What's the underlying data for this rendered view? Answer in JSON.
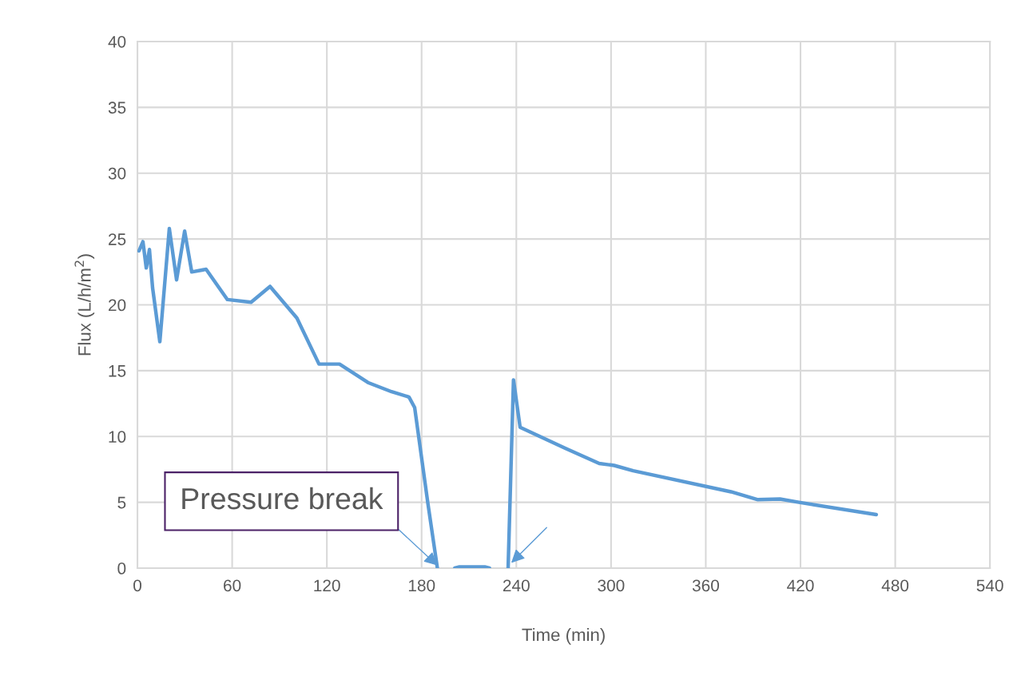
{
  "chart_data": {
    "type": "line",
    "xlabel": "Time (min)",
    "ylabel": "Flux (L/h/m$^{2}$)",
    "xlim": [
      0,
      540
    ],
    "xticks": [
      0,
      60,
      120,
      180,
      240,
      300,
      360,
      420,
      480,
      540
    ],
    "ylim": [
      0,
      40
    ],
    "yticks": [
      0,
      5,
      10,
      15,
      20,
      25,
      30,
      35,
      40
    ],
    "grid": true,
    "marker": "none",
    "line_style": "solid",
    "annotations": [
      {
        "text": "Pressure break",
        "x": 190,
        "y": 0
      }
    ],
    "series": [
      {
        "color": "#5b9bd5",
        "x": [
          1,
          3.5,
          5.6,
          7.6,
          9.6,
          14.2,
          20.2,
          24.8,
          29.9,
          34.4,
          43.5,
          57,
          72,
          84,
          101,
          115,
          128,
          146,
          161,
          172,
          175.6,
          184,
          190,
          195,
          201,
          204,
          220,
          223,
          229,
          234.8,
          238.2,
          242.4,
          271,
          292.5,
          302,
          314,
          376,
          393,
          407,
          419,
          468
        ],
        "values": [
          24.1,
          24.8,
          22.8,
          24.2,
          21.3,
          17.2,
          25.8,
          21.9,
          25.6,
          22.5,
          22.7,
          20.4,
          20.2,
          21.4,
          19.0,
          15.5,
          15.5,
          14.1,
          13.4,
          13.0,
          12.2,
          4.9,
          0,
          null,
          0,
          0.1,
          0.1,
          0,
          null,
          0,
          14.3,
          10.7,
          9.1,
          7.95,
          7.8,
          7.4,
          5.8,
          5.2,
          5.25,
          5.0,
          4.07
        ]
      }
    ]
  }
}
